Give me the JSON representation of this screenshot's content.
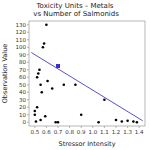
{
  "chart_data": {
    "type": "scatter",
    "title": "Toxicity Units – Metals vs Number of Salmonids",
    "x_label": "Stressor Intensity",
    "y_label": "Observation Value",
    "xlim": [
      0.45,
      1.45
    ],
    "ylim": [
      -5,
      135
    ],
    "xticks": [
      0.5,
      0.6,
      0.7,
      0.8,
      0.9,
      {
        "value": 1.0,
        "label": "1.0"
      },
      1.1,
      1.2,
      1.3,
      1.4
    ],
    "yticks": [
      0,
      10,
      20,
      30,
      40,
      50,
      60,
      70,
      80,
      90,
      100,
      110,
      120,
      130
    ],
    "grid": false,
    "series": [
      {
        "type": "scatter",
        "marker": "circle",
        "color": "#000000",
        "x": [
          0.5,
          0.5,
          0.51,
          0.52,
          0.52,
          0.53,
          0.54,
          0.55,
          0.55,
          0.56,
          0.57,
          0.58,
          0.59,
          0.6,
          0.61,
          0.65,
          0.68,
          0.7,
          0.75,
          0.85,
          0.9,
          1.05,
          1.1,
          1.2,
          1.25,
          1.3,
          1.35,
          1.38
        ],
        "values": [
          10,
          15,
          1,
          20,
          60,
          65,
          70,
          3,
          50,
          40,
          100,
          105,
          8,
          130,
          55,
          45,
          0,
          0,
          50,
          50,
          10,
          0,
          30,
          3,
          1,
          2,
          1,
          0
        ]
      },
      {
        "type": "scatter",
        "marker": "square",
        "color": "#3333cc",
        "x": [
          0.7
        ],
        "values": [
          75
        ]
      },
      {
        "type": "line",
        "line_style": "solid",
        "color": "#5555cc",
        "x": [
          0.47,
          1.43
        ],
        "values": [
          93,
          2
        ]
      }
    ]
  }
}
